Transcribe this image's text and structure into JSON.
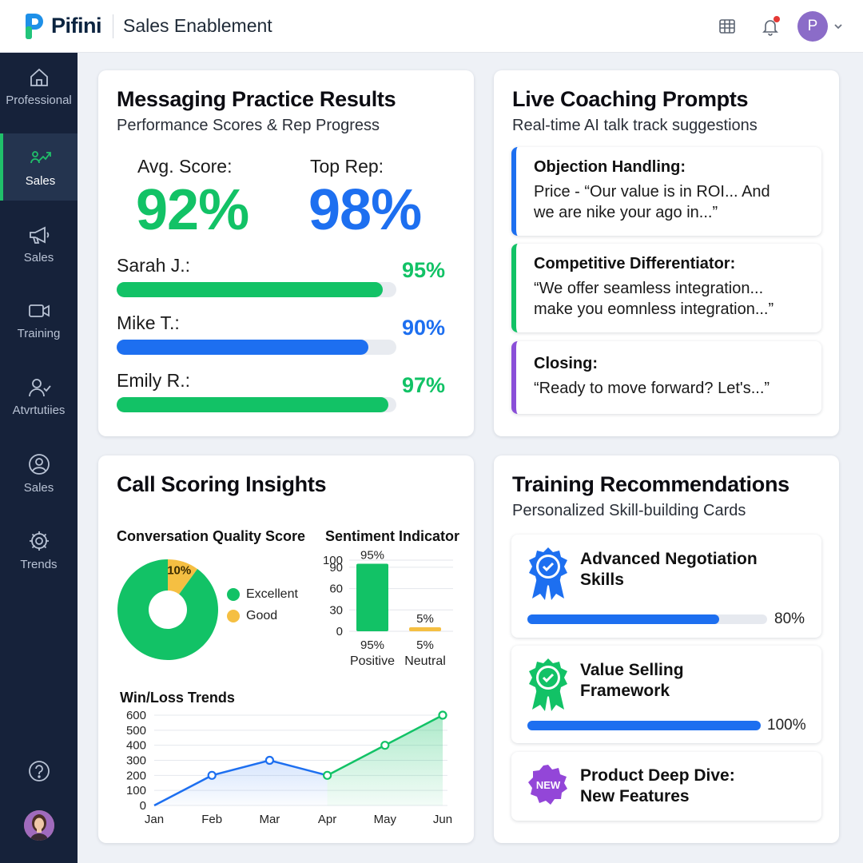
{
  "brand": {
    "name": "Pifini",
    "app_title": "Sales Enablement",
    "user_initial": "P"
  },
  "colors": {
    "green": "#12c266",
    "blue": "#1d6ff0",
    "purple": "#8a4fd8",
    "amber": "#f5bf42",
    "sidebar": "#16223a"
  },
  "sidebar": {
    "items": [
      {
        "label": "Professional",
        "icon": "home-icon"
      },
      {
        "label": "Sales",
        "icon": "trend-up-icon",
        "active": true
      },
      {
        "label": "Sales",
        "icon": "megaphone-icon"
      },
      {
        "label": "Training",
        "icon": "video-camera-icon"
      },
      {
        "label": "Atvrtutiies",
        "icon": "user-check-icon"
      },
      {
        "label": "Sales",
        "icon": "user-circle-icon"
      },
      {
        "label": "Trends",
        "icon": "gear-icon"
      }
    ]
  },
  "messaging": {
    "title": "Messaging Practice Results",
    "subtitle": "Performance Scores & Rep Progress",
    "avg_label": "Avg. Score:",
    "avg_value": "92%",
    "top_label": "Top Rep:",
    "top_value": "98%",
    "reps": [
      {
        "name": "Sarah J.:",
        "pct": "95%",
        "progress": 0.95
      },
      {
        "name": "Mike T.:",
        "pct": "90%",
        "progress": 0.9
      },
      {
        "name": "Emily R.:",
        "pct": "97%",
        "progress": 0.97
      }
    ]
  },
  "coaching": {
    "title": "Live Coaching Prompts",
    "subtitle": "Real-time AI talk track suggestions",
    "prompts": [
      {
        "title": "Objection Handling:",
        "line1": "Price - “Our value is in ROI... And",
        "line2": "we are nike your ago in...”"
      },
      {
        "title": "Competitive Differentiator:",
        "line1": "“We offer seamless integration...",
        "line2": "make you eomnless integration...”"
      },
      {
        "title": "Closing:",
        "line1": "“Ready to move forward? Let's...”",
        "line2": ""
      }
    ]
  },
  "call_scoring": {
    "title": "Call Scoring Insights",
    "quality_title": "Conversation Quality Score",
    "sentiment_title": "Sentiment Indicator",
    "winloss_title": "Win/Loss Trends"
  },
  "chart_data": [
    {
      "type": "pie",
      "title": "Conversation Quality Score",
      "slices": [
        {
          "label": "Excellent",
          "value": 90,
          "display": "90%"
        },
        {
          "label": "Good",
          "value": 10,
          "display": "10%"
        }
      ]
    },
    {
      "type": "bar",
      "title": "Sentiment Indicator",
      "categories": [
        "Positive",
        "Neutral"
      ],
      "values": [
        95,
        5
      ],
      "value_labels": [
        "95%",
        "5%"
      ],
      "ylim": [
        0,
        100
      ],
      "yticks": [
        0,
        30,
        60,
        90,
        100
      ],
      "grid": true
    },
    {
      "type": "area",
      "title": "Win/Loss Trends",
      "x": [
        "Jan",
        "Feb",
        "Mar",
        "Apr",
        "May",
        "Jun"
      ],
      "values": [
        0,
        200,
        300,
        200,
        400,
        600
      ],
      "ylim": [
        0,
        600
      ],
      "yticks": [
        0,
        100,
        200,
        300,
        400,
        500,
        600
      ],
      "grid": true
    }
  ],
  "training": {
    "title": "Training Recommendations",
    "subtitle": "Personalized Skill-building Cards",
    "cards": [
      {
        "line1": "Advanced Negotiation",
        "line2": "Skills",
        "pct": "80%",
        "progress": 0.8,
        "icon": "blue-award-badge-icon"
      },
      {
        "line1": "Value Selling",
        "line2": "Framework",
        "pct": "100%",
        "progress": 1.0,
        "icon": "green-award-badge-icon"
      },
      {
        "line1": "Product Deep Dive:",
        "line2": "New Features",
        "badge": "NEW",
        "icon": "new-badge-icon"
      }
    ]
  }
}
